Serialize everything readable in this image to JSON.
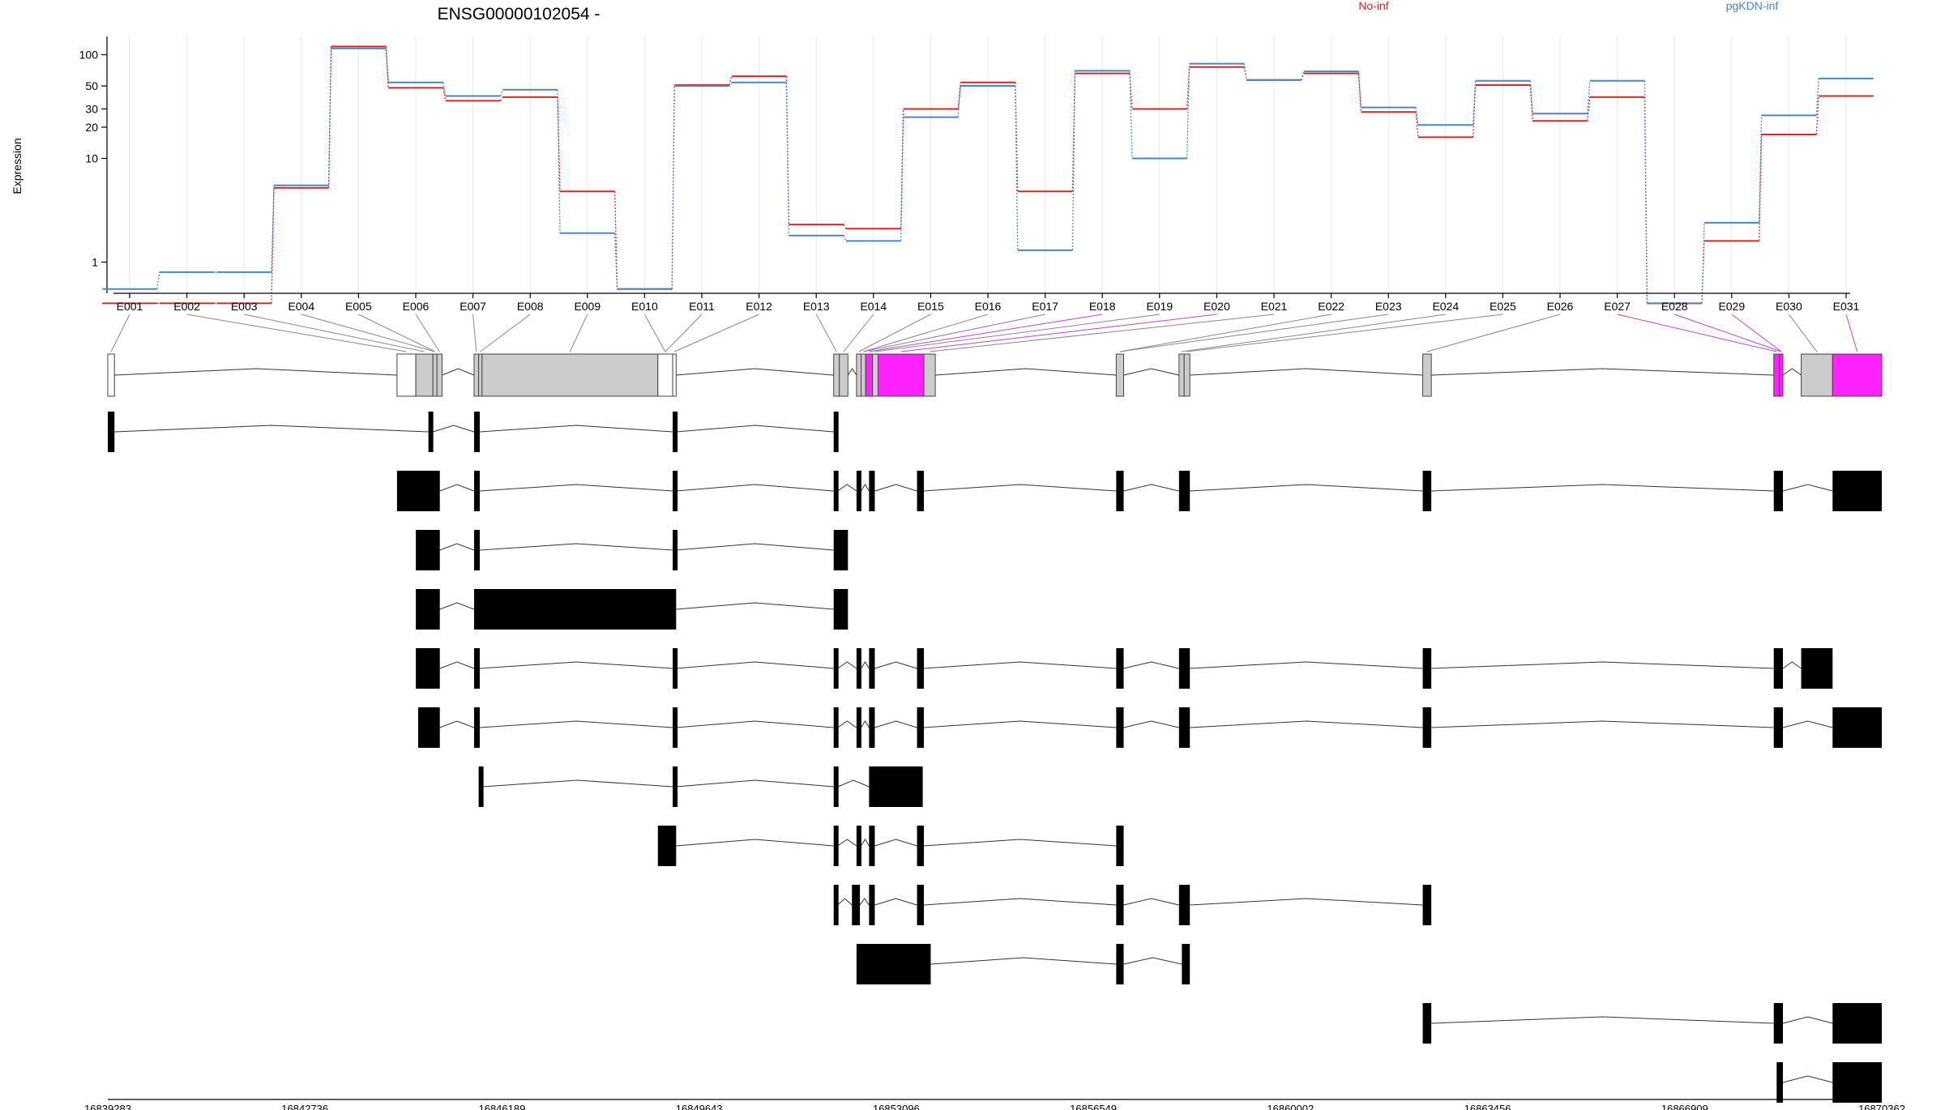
{
  "chart_data": {
    "type": "line",
    "title": "ENSG00000102054 -",
    "ylabel": "Expression",
    "xlabel": "",
    "yscale": "log",
    "ylim": [
      0.5,
      150
    ],
    "yticks": [
      "1",
      "10",
      "20",
      "30",
      "50",
      "100"
    ],
    "grid": true,
    "legend_placement": "top",
    "categories": [
      "E001",
      "E002",
      "E003",
      "E004",
      "E005",
      "E006",
      "E007",
      "E008",
      "E009",
      "E010",
      "E011",
      "E012",
      "E013",
      "E014",
      "E015",
      "E016",
      "E017",
      "E018",
      "E019",
      "E020",
      "E021",
      "E022",
      "E023",
      "E024",
      "E025",
      "E026",
      "E027",
      "E028",
      "E029",
      "E030",
      "E031"
    ],
    "series": [
      {
        "name": "No-inf",
        "color": "#d62728",
        "values": [
          0.4,
          0.4,
          0.4,
          5.2,
          120,
          48,
          36,
          39,
          4.8,
          0.55,
          51,
          62,
          2.3,
          2.1,
          30,
          54,
          4.8,
          66,
          30,
          76,
          57,
          66,
          28,
          16,
          51,
          23,
          39,
          0.4,
          1.6,
          17,
          40
        ]
      },
      {
        "name": "pgKDN-inf",
        "color": "#4a86c0",
        "values": [
          0.55,
          0.8,
          0.8,
          5.5,
          115,
          54,
          40,
          46,
          1.9,
          0.55,
          50,
          54,
          1.8,
          1.6,
          25,
          50,
          1.3,
          70,
          10,
          82,
          57,
          69,
          31,
          21,
          56,
          27,
          56,
          0.4,
          2.4,
          26,
          59
        ]
      }
    ],
    "coordinates": [
      "16839283",
      "16842736",
      "16846189",
      "16849643",
      "16853096",
      "16856549",
      "16860002",
      "16863456",
      "16866909",
      "16870362"
    ],
    "gene_model": {
      "genomic_range": [
        16839283,
        16870362
      ],
      "exon_bins": [
        {
          "s": 16839283,
          "e": 16839400,
          "fill": "#ffffff"
        },
        {
          "s": 16844350,
          "e": 16844680,
          "fill": "#ffffff"
        },
        {
          "s": 16844680,
          "e": 16844980,
          "fill": "#cccccc"
        },
        {
          "s": 16844980,
          "e": 16845050,
          "fill": "#cccccc"
        },
        {
          "s": 16845050,
          "e": 16845140,
          "fill": "#cccccc"
        },
        {
          "s": 16845700,
          "e": 16845780,
          "fill": "#cccccc"
        },
        {
          "s": 16845780,
          "e": 16845840,
          "fill": "#cccccc"
        },
        {
          "s": 16845840,
          "e": 16848920,
          "fill": "#cccccc"
        },
        {
          "s": 16848920,
          "e": 16849180,
          "fill": "#ffffff"
        },
        {
          "s": 16849180,
          "e": 16849240,
          "fill": "#ffffff"
        },
        {
          "s": 16852000,
          "e": 16852100,
          "fill": "#cccccc"
        },
        {
          "s": 16852100,
          "e": 16852250,
          "fill": "#cccccc"
        },
        {
          "s": 16852400,
          "e": 16852480,
          "fill": "#cccccc"
        },
        {
          "s": 16852480,
          "e": 16852560,
          "fill": "#cccccc"
        },
        {
          "s": 16852560,
          "e": 16852680,
          "fill": "#ff22ff"
        },
        {
          "s": 16852680,
          "e": 16852780,
          "fill": "#cccccc"
        },
        {
          "s": 16852780,
          "e": 16853580,
          "fill": "#ff22ff"
        },
        {
          "s": 16853580,
          "e": 16853780,
          "fill": "#cccccc"
        },
        {
          "s": 16856950,
          "e": 16857080,
          "fill": "#cccccc"
        },
        {
          "s": 16858050,
          "e": 16858140,
          "fill": "#cccccc"
        },
        {
          "s": 16858140,
          "e": 16858240,
          "fill": "#cccccc"
        },
        {
          "s": 16862320,
          "e": 16862470,
          "fill": "#cccccc"
        },
        {
          "s": 16868470,
          "e": 16868570,
          "fill": "#ff22ff"
        },
        {
          "s": 16868570,
          "e": 16868630,
          "fill": "#ff22ff"
        },
        {
          "s": 16868950,
          "e": 16869500,
          "fill": "#cccccc"
        },
        {
          "s": 16869500,
          "e": 16870362,
          "fill": "#ff22ff"
        }
      ],
      "transcripts": [
        [
          [
            16839283,
            16839400
          ],
          [
            16844900,
            16844980
          ],
          [
            16845700,
            16845800
          ],
          [
            16849180,
            16849240
          ],
          [
            16852000,
            16852060
          ]
        ],
        [
          [
            16844350,
            16845100
          ],
          [
            16845700,
            16845800
          ],
          [
            16849180,
            16849240
          ],
          [
            16852000,
            16852070
          ],
          [
            16852400,
            16852480
          ],
          [
            16852620,
            16852720
          ],
          [
            16853460,
            16853580
          ],
          [
            16856950,
            16857080
          ],
          [
            16858050,
            16858240
          ],
          [
            16862320,
            16862470
          ],
          [
            16868470,
            16868630
          ],
          [
            16869500,
            16870362
          ]
        ],
        [
          [
            16844680,
            16845100
          ],
          [
            16845700,
            16845800
          ],
          [
            16849180,
            16849240
          ],
          [
            16852000,
            16852250
          ]
        ],
        [
          [
            16844680,
            16845100
          ],
          [
            16845700,
            16849240
          ],
          [
            16852000,
            16852250
          ]
        ],
        [
          [
            16844680,
            16845100
          ],
          [
            16845700,
            16845800
          ],
          [
            16849180,
            16849240
          ],
          [
            16852000,
            16852070
          ],
          [
            16852400,
            16852480
          ],
          [
            16852620,
            16852720
          ],
          [
            16853460,
            16853580
          ],
          [
            16856950,
            16857080
          ],
          [
            16858050,
            16858240
          ],
          [
            16862320,
            16862470
          ],
          [
            16868470,
            16868630
          ],
          [
            16868950,
            16869500
          ]
        ],
        [
          [
            16844720,
            16845100
          ],
          [
            16845700,
            16845800
          ],
          [
            16849180,
            16849240
          ],
          [
            16852000,
            16852070
          ],
          [
            16852400,
            16852480
          ],
          [
            16852620,
            16852720
          ],
          [
            16853460,
            16853580
          ],
          [
            16856950,
            16857080
          ],
          [
            16858050,
            16858240
          ],
          [
            16862320,
            16862470
          ],
          [
            16868470,
            16868630
          ],
          [
            16869500,
            16870362
          ]
        ],
        [
          [
            16845780,
            16845840
          ],
          [
            16849180,
            16849240
          ],
          [
            16852000,
            16852070
          ],
          [
            16852620,
            16853560
          ]
        ],
        [
          [
            16848920,
            16849240
          ],
          [
            16852000,
            16852070
          ],
          [
            16852400,
            16852480
          ],
          [
            16852620,
            16852720
          ],
          [
            16853460,
            16853580
          ],
          [
            16856950,
            16857080
          ]
        ],
        [
          [
            16852000,
            16852070
          ],
          [
            16852320,
            16852460
          ],
          [
            16852620,
            16852720
          ],
          [
            16853460,
            16853580
          ],
          [
            16856950,
            16857080
          ],
          [
            16858050,
            16858240
          ],
          [
            16862320,
            16862470
          ]
        ],
        [
          [
            16852400,
            16853700
          ],
          [
            16856950,
            16857080
          ],
          [
            16858100,
            16858240
          ]
        ],
        [
          [
            16862320,
            16862470
          ],
          [
            16868470,
            16868630
          ],
          [
            16869500,
            16870362
          ]
        ],
        [
          [
            16868520,
            16868630
          ],
          [
            16869500,
            16870362
          ]
        ]
      ]
    }
  }
}
